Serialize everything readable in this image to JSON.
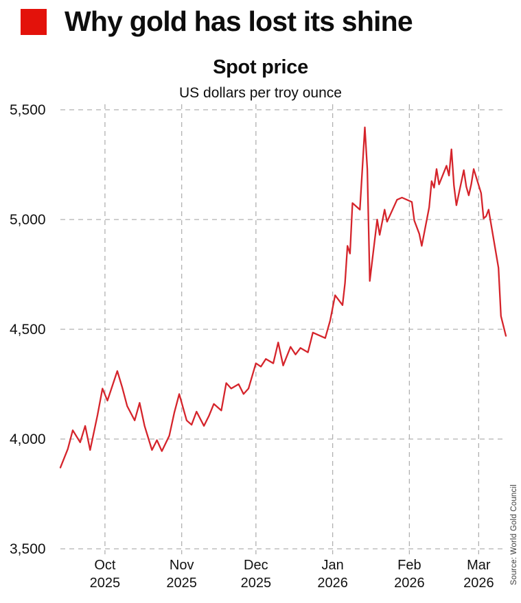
{
  "header": {
    "title": "Why gold has lost its shine",
    "subtitle": "Spot price",
    "unit_label": "US dollars per troy ounce"
  },
  "source": "Source: World Gold Council",
  "colors": {
    "brand_red": "#e3120b",
    "line_red": "#d5242b",
    "grid": "#b0b0b0",
    "text": "#0d0d0d"
  },
  "chart_data": {
    "type": "line",
    "title": "Spot price",
    "subtitle": "US dollars per troy ounce",
    "ylabel": "US dollars per troy ounce",
    "xlabel": "",
    "ylim": [
      3500,
      5500
    ],
    "yticks": [
      3500,
      4000,
      4500,
      5000,
      5500
    ],
    "grid": true,
    "legend": "none",
    "x_axis": {
      "start": "2025-09-13",
      "end": "2026-03-12",
      "month_ticks": [
        {
          "label": "Oct",
          "year": "2025",
          "date": "2025-10-01"
        },
        {
          "label": "Nov",
          "year": "2025",
          "date": "2025-11-01"
        },
        {
          "label": "Dec",
          "year": "2025",
          "date": "2025-12-01"
        },
        {
          "label": "Jan",
          "year": "2026",
          "date": "2026-01-01"
        },
        {
          "label": "Feb",
          "year": "2026",
          "date": "2026-02-01"
        },
        {
          "label": "Mar",
          "year": "2026",
          "date": "2026-03-01"
        }
      ]
    },
    "series": [
      {
        "name": "Gold spot price",
        "points": [
          [
            "2025-09-13",
            3870
          ],
          [
            "2025-09-16",
            3955
          ],
          [
            "2025-09-18",
            4040
          ],
          [
            "2025-09-21",
            3985
          ],
          [
            "2025-09-23",
            4060
          ],
          [
            "2025-09-25",
            3950
          ],
          [
            "2025-09-28",
            4110
          ],
          [
            "2025-09-30",
            4230
          ],
          [
            "2025-10-02",
            4175
          ],
          [
            "2025-10-06",
            4310
          ],
          [
            "2025-10-08",
            4235
          ],
          [
            "2025-10-10",
            4150
          ],
          [
            "2025-10-13",
            4085
          ],
          [
            "2025-10-15",
            4165
          ],
          [
            "2025-10-17",
            4060
          ],
          [
            "2025-10-20",
            3950
          ],
          [
            "2025-10-22",
            3995
          ],
          [
            "2025-10-24",
            3945
          ],
          [
            "2025-10-27",
            4015
          ],
          [
            "2025-10-29",
            4120
          ],
          [
            "2025-10-31",
            4205
          ],
          [
            "2025-11-03",
            4085
          ],
          [
            "2025-11-05",
            4065
          ],
          [
            "2025-11-07",
            4125
          ],
          [
            "2025-11-10",
            4060
          ],
          [
            "2025-11-12",
            4105
          ],
          [
            "2025-11-14",
            4160
          ],
          [
            "2025-11-17",
            4130
          ],
          [
            "2025-11-19",
            4255
          ],
          [
            "2025-11-21",
            4230
          ],
          [
            "2025-11-24",
            4250
          ],
          [
            "2025-11-26",
            4205
          ],
          [
            "2025-11-28",
            4230
          ],
          [
            "2025-12-01",
            4345
          ],
          [
            "2025-12-03",
            4330
          ],
          [
            "2025-12-05",
            4365
          ],
          [
            "2025-12-08",
            4345
          ],
          [
            "2025-12-10",
            4440
          ],
          [
            "2025-12-12",
            4335
          ],
          [
            "2025-12-15",
            4420
          ],
          [
            "2025-12-17",
            4385
          ],
          [
            "2025-12-19",
            4415
          ],
          [
            "2025-12-22",
            4395
          ],
          [
            "2025-12-24",
            4485
          ],
          [
            "2025-12-29",
            4460
          ],
          [
            "2025-12-31",
            4540
          ],
          [
            "2026-01-02",
            4655
          ],
          [
            "2026-01-05",
            4610
          ],
          [
            "2026-01-06",
            4710
          ],
          [
            "2026-01-07",
            4880
          ],
          [
            "2026-01-08",
            4845
          ],
          [
            "2026-01-09",
            5075
          ],
          [
            "2026-01-12",
            5045
          ],
          [
            "2026-01-14",
            5420
          ],
          [
            "2026-01-15",
            5230
          ],
          [
            "2026-01-16",
            4720
          ],
          [
            "2026-01-19",
            5000
          ],
          [
            "2026-01-20",
            4930
          ],
          [
            "2026-01-22",
            5045
          ],
          [
            "2026-01-23",
            4990
          ],
          [
            "2026-01-27",
            5090
          ],
          [
            "2026-01-29",
            5100
          ],
          [
            "2026-02-02",
            5080
          ],
          [
            "2026-02-03",
            4995
          ],
          [
            "2026-02-05",
            4935
          ],
          [
            "2026-02-06",
            4880
          ],
          [
            "2026-02-09",
            5055
          ],
          [
            "2026-02-10",
            5175
          ],
          [
            "2026-02-11",
            5145
          ],
          [
            "2026-02-12",
            5230
          ],
          [
            "2026-02-13",
            5160
          ],
          [
            "2026-02-16",
            5245
          ],
          [
            "2026-02-17",
            5200
          ],
          [
            "2026-02-18",
            5320
          ],
          [
            "2026-02-19",
            5155
          ],
          [
            "2026-02-20",
            5065
          ],
          [
            "2026-02-23",
            5225
          ],
          [
            "2026-02-24",
            5150
          ],
          [
            "2026-02-25",
            5110
          ],
          [
            "2026-02-26",
            5160
          ],
          [
            "2026-02-27",
            5230
          ],
          [
            "2026-03-02",
            5120
          ],
          [
            "2026-03-03",
            5005
          ],
          [
            "2026-03-04",
            5015
          ],
          [
            "2026-03-05",
            5045
          ],
          [
            "2026-03-09",
            4780
          ],
          [
            "2026-03-10",
            4560
          ],
          [
            "2026-03-12",
            4470
          ]
        ]
      }
    ]
  }
}
